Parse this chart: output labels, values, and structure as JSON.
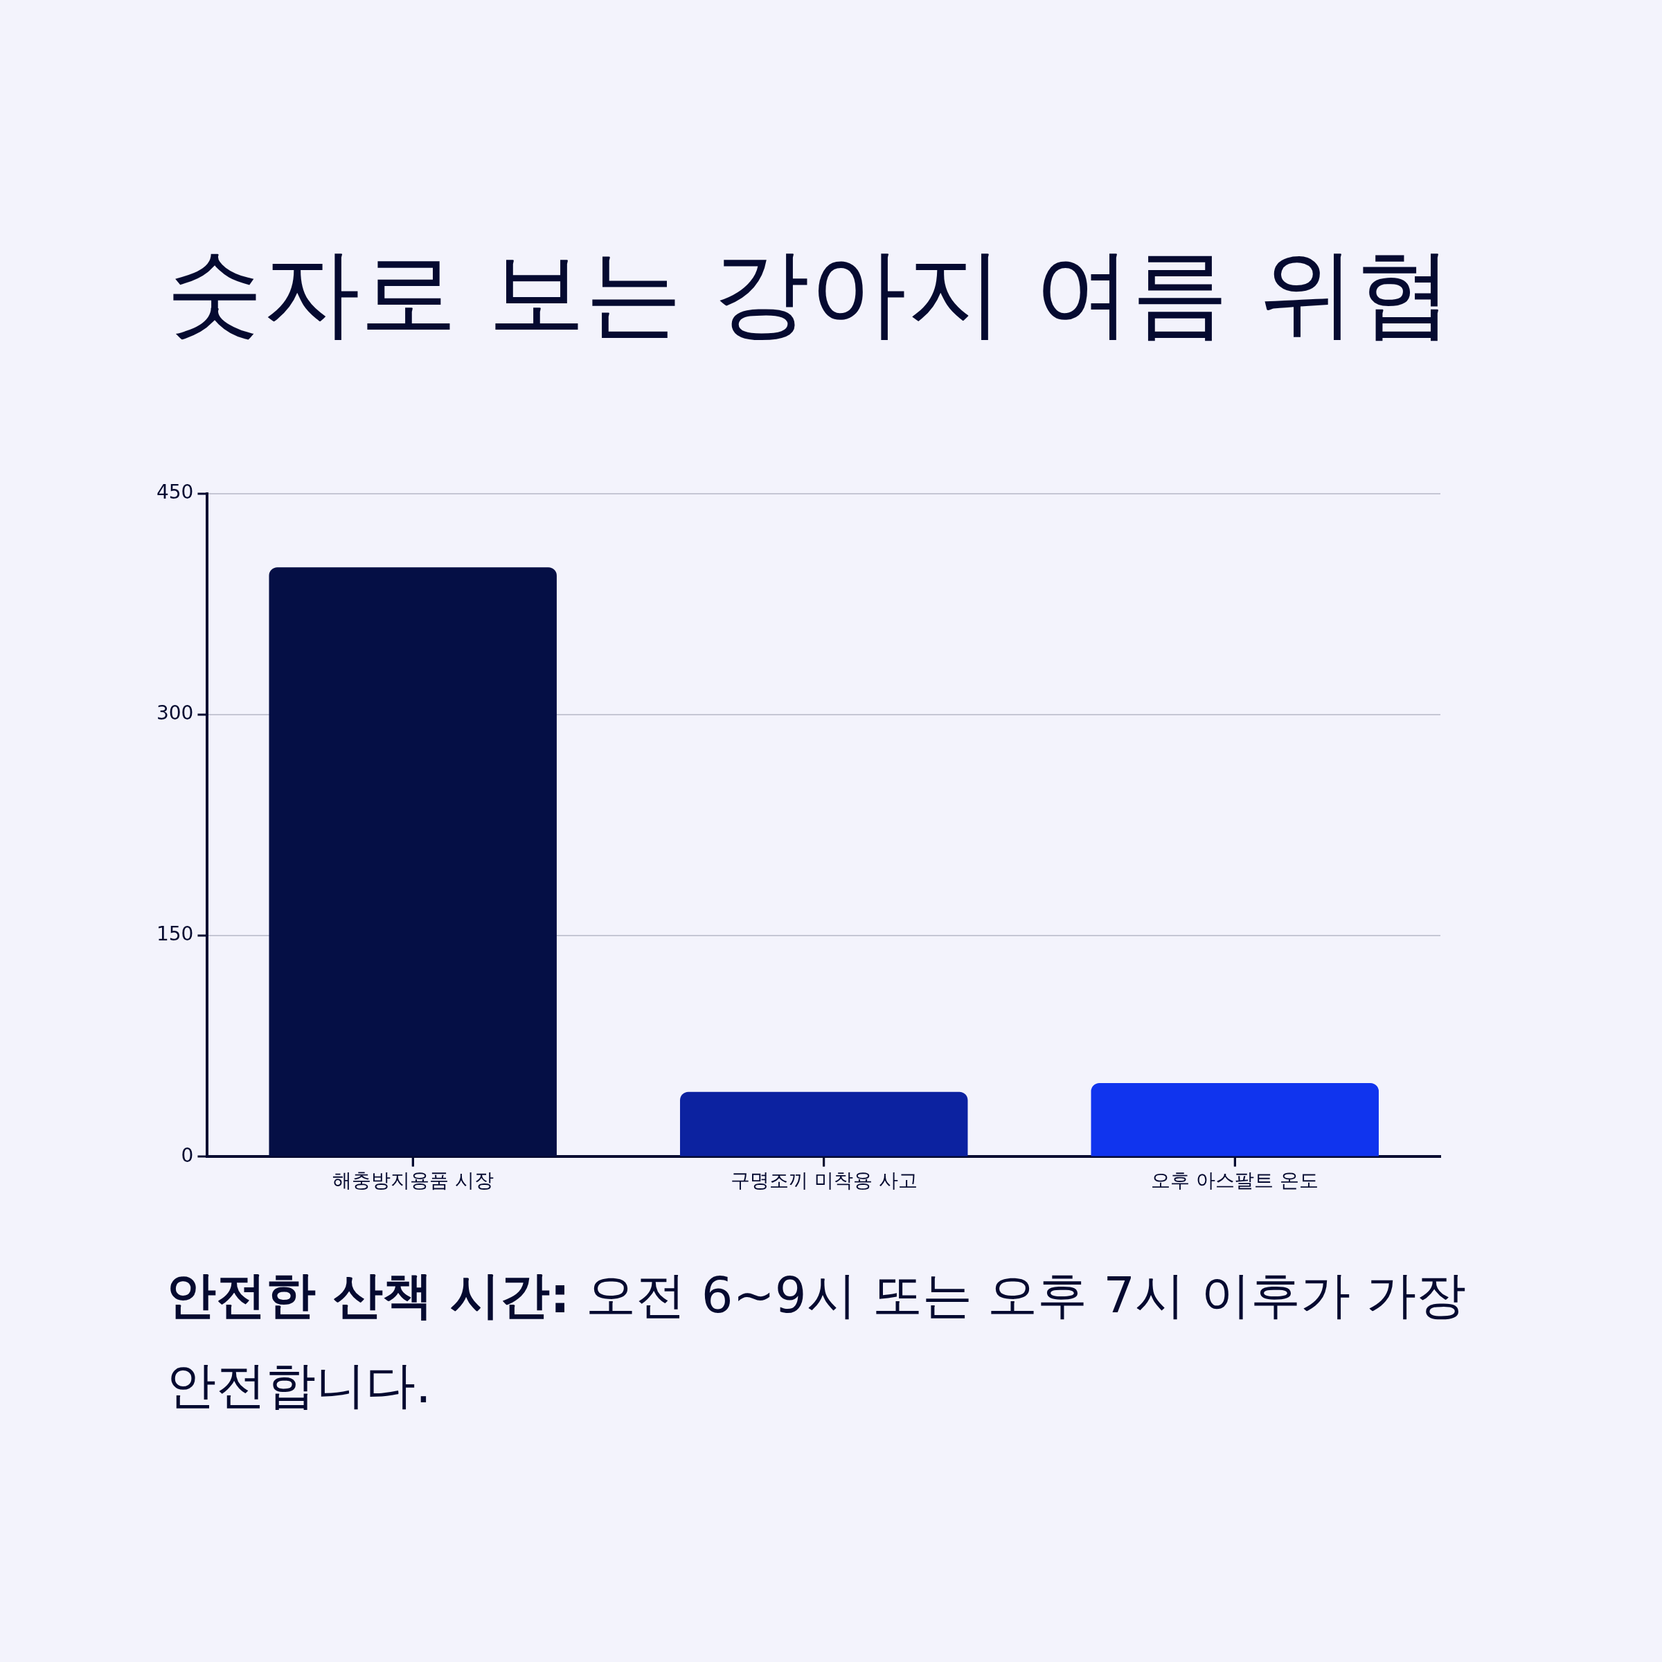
{
  "chart_data": {
    "type": "bar",
    "title": "숫자로 보는 강아지 여름 위협",
    "categories": [
      "해충방지용품 시장",
      "구명조끼 미착용 사고",
      "오후 아스팔트 온도"
    ],
    "values": [
      400,
      44,
      50
    ],
    "colors": [
      "#050f45",
      "#0c22a0",
      "#1034ee"
    ],
    "ylim": [
      0,
      450
    ],
    "yticks": [
      0,
      150,
      300,
      450
    ],
    "grid": "y",
    "legend": false,
    "annotations": [
      "안전한 산책 시간: 오전 6~9시 또는 오후 7시 이후가 가장 안전합니다."
    ]
  }
}
